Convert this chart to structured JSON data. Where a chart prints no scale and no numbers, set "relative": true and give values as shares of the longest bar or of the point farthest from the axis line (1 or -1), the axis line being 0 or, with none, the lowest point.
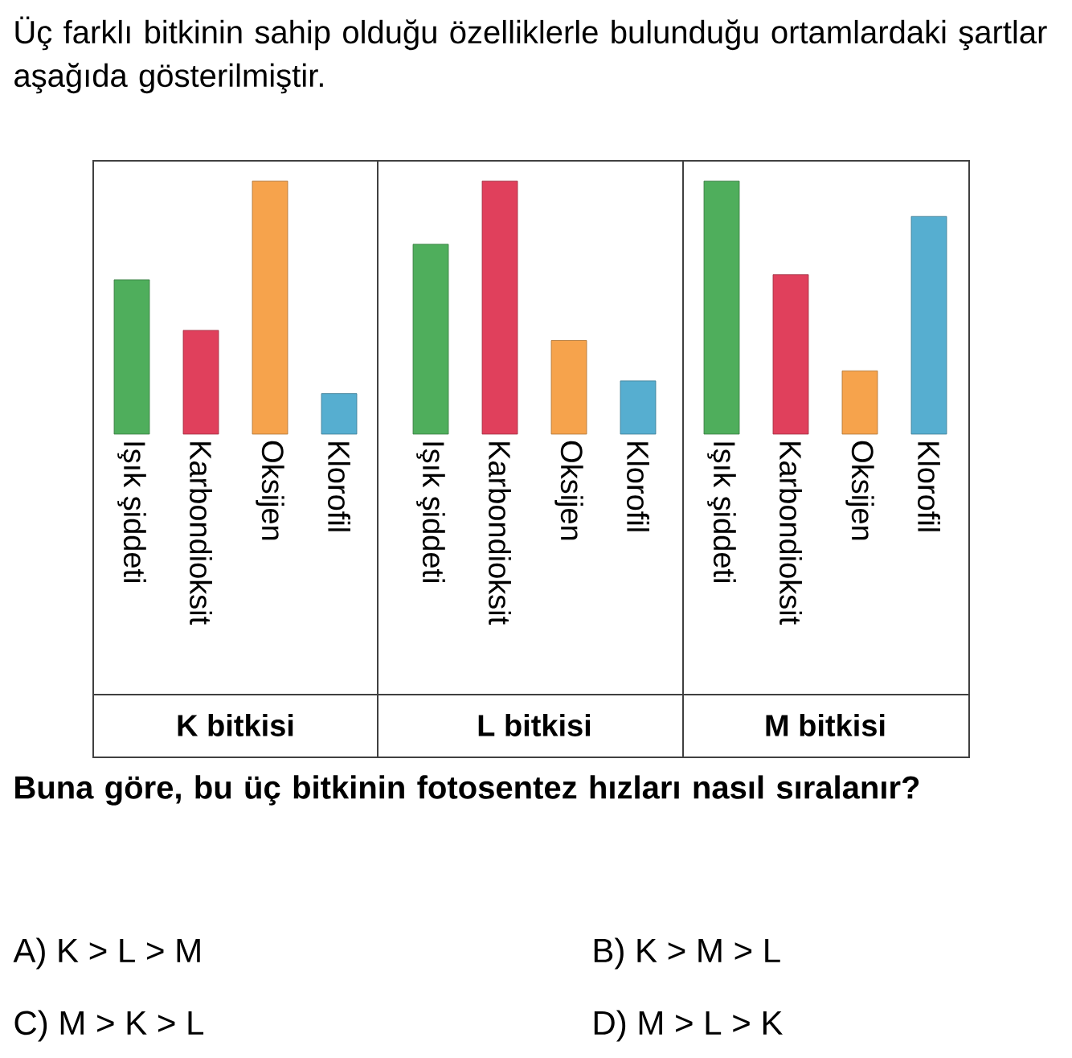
{
  "chart_data": [
    {
      "type": "bar",
      "relative": true,
      "title": "Üç farklı bitkinin sahip olduğu özelliklerle bulunduğu ortamlardaki şartlar aşağıda gösterilmiştir.",
      "xlabel": "K bitkisi",
      "categories": [
        "Işık şiddeti",
        "Karbondioksit",
        "Oksijen",
        "Klorofil"
      ],
      "values": [
        0.61,
        0.41,
        1,
        0.16
      ],
      "colors": [
        "#4fae5c",
        "#e0405c",
        "#f6a34c",
        "#56aed0"
      ]
    },
    {
      "type": "bar",
      "relative": true,
      "xlabel": "L bitkisi",
      "categories": [
        "Işık şiddeti",
        "Karbondioksit",
        "Oksijen",
        "Klorofil"
      ],
      "values": [
        0.75,
        1,
        0.37,
        0.21
      ],
      "colors": [
        "#4fae5c",
        "#e0405c",
        "#f6a34c",
        "#56aed0"
      ]
    },
    {
      "type": "bar",
      "relative": true,
      "xlabel": "M bitkisi",
      "categories": [
        "Işık şiddeti",
        "Karbondioksit",
        "Oksijen",
        "Klorofil"
      ],
      "values": [
        1,
        0.63,
        0.25,
        0.86
      ],
      "colors": [
        "#4fae5c",
        "#e0405c",
        "#f6a34c",
        "#56aed0"
      ],
      "annotations": [
        "Buna göre, bu üç bitkinin fotosentez hızları nasıl sıralanır?",
        "A) K > L > M",
        "B) K > M > L",
        "C) M > K > L",
        "D) M > L > K"
      ]
    }
  ]
}
